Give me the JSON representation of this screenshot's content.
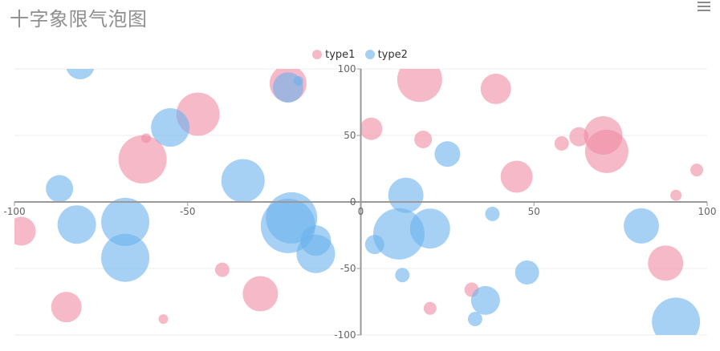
{
  "title": "十字象限气泡图",
  "toolbar": {
    "menu_icon": "hamburger-menu-icon"
  },
  "colors": {
    "type1": "#f08aa3",
    "type2": "#6bb3ec",
    "axis": "#999999",
    "grid": "#eeeeee",
    "label": "#666666"
  },
  "chart_data": {
    "type": "scatter",
    "subtype": "bubble",
    "title": "十字象限气泡图",
    "xlim": [
      -100,
      100
    ],
    "ylim": [
      -100,
      100
    ],
    "x_ticks": [
      "-100",
      "-50",
      "0",
      "50",
      "100"
    ],
    "y_ticks": [
      "100",
      "50",
      "0",
      "-50",
      "-100"
    ],
    "grid": "horizontal",
    "axes": "crosshair at origin",
    "legend_position": "top-center",
    "series": [
      {
        "name": "type1",
        "color": "#f08aa3",
        "points": [
          {
            "x": -98,
            "y": -22,
            "size": 18
          },
          {
            "x": -85,
            "y": -79,
            "size": 19
          },
          {
            "x": -63,
            "y": 32,
            "size": 30
          },
          {
            "x": -62,
            "y": 48,
            "size": 6
          },
          {
            "x": -57,
            "y": -88,
            "size": 6
          },
          {
            "x": -47,
            "y": 66,
            "size": 27
          },
          {
            "x": -40,
            "y": -51,
            "size": 9
          },
          {
            "x": -29,
            "y": -69,
            "size": 22
          },
          {
            "x": -21,
            "y": 89,
            "size": 23
          },
          {
            "x": 3,
            "y": 55,
            "size": 14
          },
          {
            "x": 17,
            "y": 92,
            "size": 28
          },
          {
            "x": 18,
            "y": 47,
            "size": 11
          },
          {
            "x": 20,
            "y": -80,
            "size": 8
          },
          {
            "x": 32,
            "y": -66,
            "size": 9
          },
          {
            "x": 39,
            "y": 85,
            "size": 19
          },
          {
            "x": 45,
            "y": 19,
            "size": 20
          },
          {
            "x": 58,
            "y": 44,
            "size": 9
          },
          {
            "x": 63,
            "y": 49,
            "size": 12
          },
          {
            "x": 70,
            "y": 50,
            "size": 24
          },
          {
            "x": 71,
            "y": 38,
            "size": 27
          },
          {
            "x": 88,
            "y": -46,
            "size": 22
          },
          {
            "x": 91,
            "y": 5,
            "size": 7
          },
          {
            "x": 97,
            "y": 24,
            "size": 8
          }
        ]
      },
      {
        "name": "type2",
        "color": "#6bb3ec",
        "points": [
          {
            "x": -87,
            "y": 10,
            "size": 17
          },
          {
            "x": -82,
            "y": -17,
            "size": 24
          },
          {
            "x": -81,
            "y": 103,
            "size": 18
          },
          {
            "x": -68,
            "y": -15,
            "size": 30
          },
          {
            "x": -68,
            "y": -42,
            "size": 30
          },
          {
            "x": -55,
            "y": 56,
            "size": 24
          },
          {
            "x": -34,
            "y": 16,
            "size": 27
          },
          {
            "x": -21,
            "y": 86,
            "size": 19
          },
          {
            "x": -21,
            "y": -18,
            "size": 34
          },
          {
            "x": -20,
            "y": -12,
            "size": 32
          },
          {
            "x": -18,
            "y": 91,
            "size": 6
          },
          {
            "x": -13,
            "y": -29,
            "size": 19
          },
          {
            "x": -13,
            "y": -39,
            "size": 24
          },
          {
            "x": 4,
            "y": -32,
            "size": 12
          },
          {
            "x": 11,
            "y": -24,
            "size": 32
          },
          {
            "x": 12,
            "y": -55,
            "size": 9
          },
          {
            "x": 13,
            "y": 5,
            "size": 22
          },
          {
            "x": 20,
            "y": -20,
            "size": 25
          },
          {
            "x": 25,
            "y": 36,
            "size": 16
          },
          {
            "x": 33,
            "y": -88,
            "size": 9
          },
          {
            "x": 36,
            "y": -74,
            "size": 18
          },
          {
            "x": 38,
            "y": -9,
            "size": 9
          },
          {
            "x": 48,
            "y": -53,
            "size": 15
          },
          {
            "x": 81,
            "y": -18,
            "size": 22
          },
          {
            "x": 91,
            "y": -90,
            "size": 30
          }
        ]
      }
    ]
  }
}
